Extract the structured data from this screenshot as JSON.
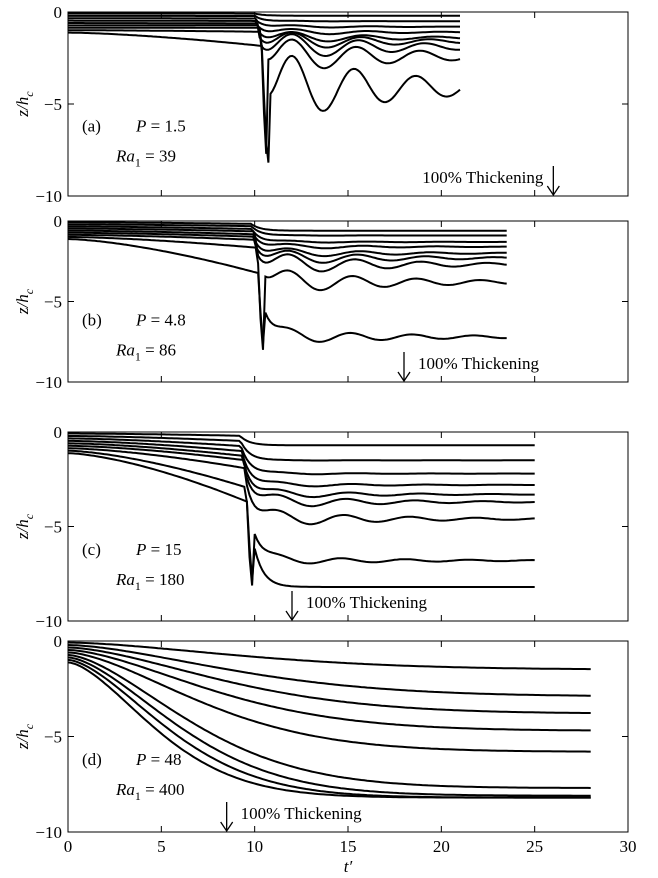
{
  "chart_data": [
    {
      "type": "line",
      "panel_label": "(a)",
      "params": [
        {
          "name": "P",
          "sub": "",
          "eq": " = 1.5"
        },
        {
          "name": "Ra",
          "sub": "1",
          "eq": " = 39"
        }
      ],
      "annotation": {
        "text": "100% Thickening",
        "x": 26
      },
      "ylabel": "z/h",
      "ylabel_sub": "c",
      "ylim": [
        -10,
        0
      ],
      "yticks": [
        "-10",
        "-5",
        "0"
      ],
      "xlim": [
        0,
        30
      ],
      "series_summary": {
        "count": 9,
        "x_end": 21,
        "plume_x": 10.4,
        "plume_depth": -8.2,
        "final_depths": [
          -0.2,
          -0.5,
          -0.8,
          -1.1,
          -1.4,
          -1.6,
          -1.9,
          -2.4,
          -4.1
        ]
      }
    },
    {
      "type": "line",
      "panel_label": "(b)",
      "params": [
        {
          "name": "P",
          "sub": "",
          "eq": " = 4.8"
        },
        {
          "name": "Ra",
          "sub": "1",
          "eq": " = 86"
        }
      ],
      "annotation": {
        "text": "100% Thickening",
        "x": 18
      },
      "ylabel": "z/h",
      "ylabel_sub": "c",
      "ylim": [
        -10,
        0
      ],
      "yticks": [
        "-10",
        "-5",
        "0"
      ],
      "xlim": [
        0,
        30
      ],
      "series_summary": {
        "count": 9,
        "x_end": 23.5,
        "plume_x": 10.2,
        "plume_depth": -8.2,
        "final_depths": [
          -0.6,
          -0.9,
          -1.3,
          -1.6,
          -2.0,
          -2.3,
          -2.7,
          -3.8,
          -7.2
        ]
      }
    },
    {
      "type": "line",
      "panel_label": "(c)",
      "params": [
        {
          "name": "P",
          "sub": "",
          "eq": " = 15"
        },
        {
          "name": "Ra",
          "sub": "1",
          "eq": " = 180"
        }
      ],
      "annotation": {
        "text": "100% Thickening",
        "x": 12
      },
      "ylabel": "z/h",
      "ylabel_sub": "c",
      "ylim": [
        -10,
        0
      ],
      "yticks": [
        "-10",
        "-5",
        "0"
      ],
      "xlim": [
        0,
        30
      ],
      "series_summary": {
        "count": 9,
        "x_end": 25,
        "plume_x": 9.6,
        "plume_depth": -8.2,
        "final_depths": [
          -0.7,
          -1.5,
          -2.2,
          -2.8,
          -3.3,
          -3.7,
          -4.6,
          -6.8,
          -8.2
        ]
      }
    },
    {
      "type": "line",
      "panel_label": "(d)",
      "params": [
        {
          "name": "P",
          "sub": "",
          "eq": " = 48"
        },
        {
          "name": "Ra",
          "sub": "1",
          "eq": " = 400"
        }
      ],
      "annotation": {
        "text": "100% Thickening",
        "x": 8.5
      },
      "ylabel": "z/h",
      "ylabel_sub": "c",
      "ylim": [
        -10,
        0
      ],
      "yticks": [
        "-10",
        "-5",
        "0"
      ],
      "xlim": [
        0,
        30
      ],
      "xticks": [
        "0",
        "5",
        "10",
        "15",
        "20",
        "25",
        "30"
      ],
      "xlabel": "t′",
      "series_summary": {
        "count": 9,
        "x_end": 28,
        "plume_x": 8.7,
        "plume_depth": -8.2,
        "final_depths": [
          -1.5,
          -2.9,
          -3.8,
          -4.7,
          -5.8,
          -7.7,
          -8.1,
          -8.2,
          -8.2
        ]
      }
    }
  ]
}
